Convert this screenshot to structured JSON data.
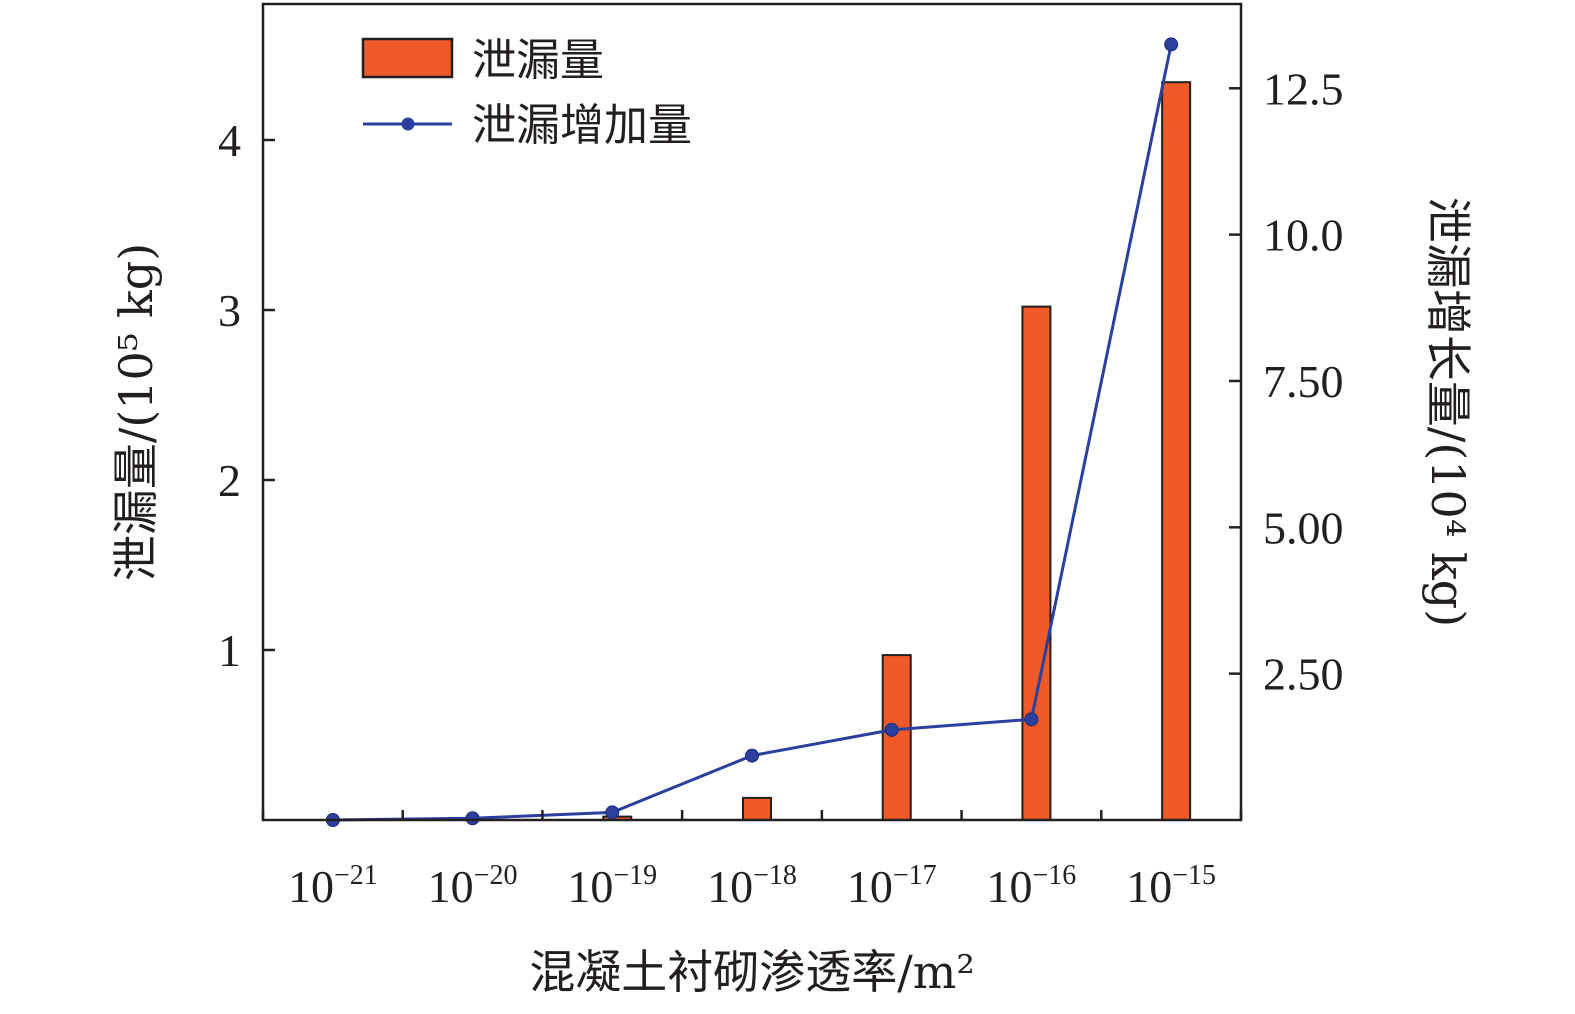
{
  "chart_data": {
    "type": "bar",
    "categories": [
      {
        "base": "10",
        "exp": "−21"
      },
      {
        "base": "10",
        "exp": "−20"
      },
      {
        "base": "10",
        "exp": "−19"
      },
      {
        "base": "10",
        "exp": "−18"
      },
      {
        "base": "10",
        "exp": "−17"
      },
      {
        "base": "10",
        "exp": "−16"
      },
      {
        "base": "10",
        "exp": "−15"
      }
    ],
    "series": [
      {
        "name": "泄漏量",
        "kind": "bar",
        "axis": "left",
        "color": "#f05a28",
        "values": [
          0.0,
          0.005,
          0.02,
          0.13,
          0.97,
          3.02,
          4.34
        ]
      },
      {
        "name": "泄漏增加量",
        "kind": "line",
        "axis": "right",
        "color": "#2b3f9e",
        "values": [
          0.0,
          0.03,
          0.13,
          1.1,
          1.54,
          1.72,
          13.25
        ]
      }
    ],
    "xlabel": "混凝土衬砌渗透率/m²",
    "ylabel_left": "泄漏量/(10⁵ kg)",
    "ylabel_right": "泄漏增长量/(10⁴ kg)",
    "ylim_left": [
      0,
      4.8
    ],
    "ylim_right": [
      0,
      13.94
    ],
    "yticks_left": [
      {
        "value": 1,
        "label": "1"
      },
      {
        "value": 2,
        "label": "2"
      },
      {
        "value": 3,
        "label": "3"
      },
      {
        "value": 4,
        "label": "4"
      }
    ],
    "yticks_right": [
      {
        "value": 2.5,
        "label": "2.50"
      },
      {
        "value": 5.0,
        "label": "5.00"
      },
      {
        "value": 7.5,
        "label": "7.50"
      },
      {
        "value": 10.0,
        "label": "10.0"
      },
      {
        "value": 12.5,
        "label": "12.5"
      }
    ],
    "legend": {
      "position": "top-left"
    },
    "grid": false
  }
}
